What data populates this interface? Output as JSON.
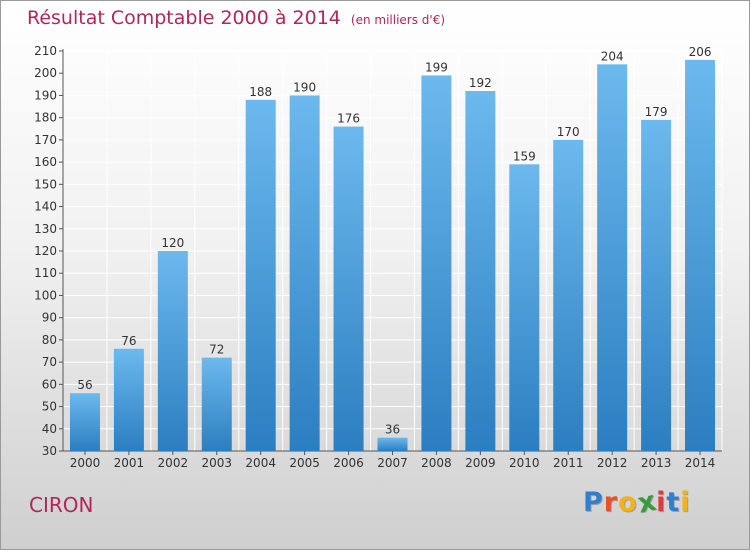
{
  "header": {
    "title": "Résultat Comptable 2000 à 2014",
    "subtitle": "(en milliers d'€)"
  },
  "footer": {
    "place": "CIRON",
    "logo": {
      "text": "Proxiti",
      "letters": [
        "P",
        "r",
        "o",
        "x",
        "i",
        "t",
        "i"
      ],
      "colors": [
        "#2f7fd0",
        "#e8502c",
        "#f2b21a",
        "#3a9b3e",
        "#d6403c",
        "#2f7fd0",
        "#f2b21a"
      ]
    }
  },
  "colors": {
    "bar_light": "#6cb9ee",
    "bar_dark": "#2b7ec0",
    "grid": "#ffffff",
    "title": "#b0285a"
  },
  "chart_data": {
    "type": "bar",
    "title": "Résultat Comptable 2000 à 2014",
    "subtitle": "(en milliers d'€)",
    "categories": [
      "2000",
      "2001",
      "2002",
      "2003",
      "2004",
      "2005",
      "2006",
      "2007",
      "2008",
      "2009",
      "2010",
      "2011",
      "2012",
      "2013",
      "2014"
    ],
    "values": [
      56,
      76,
      120,
      72,
      188,
      190,
      176,
      36,
      199,
      192,
      159,
      170,
      204,
      179,
      206
    ],
    "ylim": [
      30,
      210
    ],
    "yticks": [
      30,
      40,
      50,
      60,
      70,
      80,
      90,
      100,
      110,
      120,
      130,
      140,
      150,
      160,
      170,
      180,
      190,
      200,
      210
    ],
    "grid": true,
    "xlabel": "",
    "ylabel": ""
  }
}
